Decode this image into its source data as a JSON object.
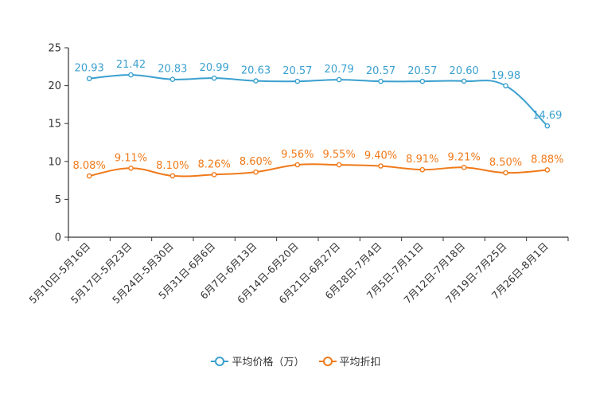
{
  "chart_data": {
    "type": "line",
    "categories": [
      "5月10日-5月16日",
      "5月17日-5月23日",
      "5月24日-5月30日",
      "5月31日-6月6日",
      "6月7日-6月13日",
      "6月14日-6月20日",
      "6月21日-6月27日",
      "6月28日-7月4日",
      "7月5日-7月11日",
      "7月12日-7月18日",
      "7月19日-7月25日",
      "7月26日-8月1日"
    ],
    "ylim": [
      0,
      25
    ],
    "yticks": [
      "0",
      "5",
      "10",
      "15",
      "20",
      "25"
    ],
    "series": [
      {
        "name": "平均价格（万）",
        "color": "#3aa0cf",
        "values": [
          20.93,
          21.42,
          20.83,
          20.99,
          20.63,
          20.57,
          20.79,
          20.57,
          20.57,
          20.6,
          19.98,
          14.69
        ],
        "labels": [
          "20.93",
          "21.42",
          "20.83",
          "20.99",
          "20.63",
          "20.57",
          "20.79",
          "20.57",
          "20.57",
          "20.60",
          "19.98",
          "14.69"
        ]
      },
      {
        "name": "平均折扣",
        "color": "#f07a1a",
        "values": [
          8.08,
          9.11,
          8.1,
          8.26,
          8.6,
          9.56,
          9.55,
          9.4,
          8.91,
          9.21,
          8.5,
          8.88
        ],
        "labels": [
          "8.08%",
          "9.11%",
          "8.10%",
          "8.26%",
          "8.60%",
          "9.56%",
          "9.55%",
          "9.40%",
          "8.91%",
          "9.21%",
          "8.50%",
          "8.88%"
        ]
      }
    ],
    "legend_position": "bottom-center",
    "grid": false
  }
}
